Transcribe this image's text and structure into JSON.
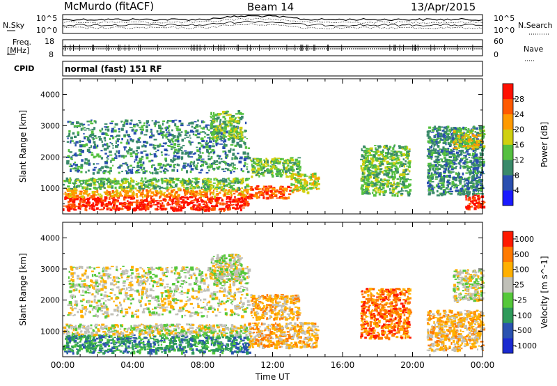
{
  "header": {
    "station": "McMurdo (fitACF)",
    "beam": "Beam 14",
    "date": "13/Apr/2015",
    "nsky_label": "N.Sky",
    "nsky_ticks": [
      "10^5",
      "10^0"
    ],
    "nsearch_label": "N.Search",
    "nsearch_ticks": [
      "10^5",
      "10^0"
    ],
    "freq_label": "Freq.",
    "freq_unit": "[MHz]",
    "freq_ticks": [
      "18",
      "8"
    ],
    "nave_label": "Nave",
    "nave_ticks": [
      "60",
      "0"
    ],
    "cpid_label": "CPID",
    "mode_text": "normal (fast) 151 RF"
  },
  "chart_data": [
    {
      "type": "heatmap",
      "name": "power-panel",
      "ylabel": "Slant Range [km]",
      "xlabel": "Time UT",
      "x_ticks": [
        "00:00",
        "04:00",
        "08:00",
        "12:00",
        "16:00",
        "20:00",
        "00:00"
      ],
      "x_range_hours": [
        0,
        24
      ],
      "ylim": [
        180,
        4500
      ],
      "y_ticks": [
        1000,
        2000,
        3000,
        4000
      ],
      "colorbar": {
        "label": "Power [dB]",
        "ticks": [
          "4",
          "8",
          "12",
          "16",
          "20",
          "24",
          "28"
        ],
        "colors": [
          "#1a1aff",
          "#2a4fb0",
          "#3a8a6a",
          "#55c040",
          "#d0d010",
          "#ff9a00",
          "#ff5a00",
          "#ff1000"
        ]
      },
      "regions": [
        {
          "t0": 0.0,
          "t1": 10.6,
          "r0": 330,
          "r1": 760,
          "level": 7
        },
        {
          "t0": 0.0,
          "t1": 10.6,
          "r0": 760,
          "r1": 1000,
          "level": 5
        },
        {
          "t0": 0.0,
          "t1": 10.6,
          "r0": 1000,
          "r1": 1350,
          "level": 3
        },
        {
          "t0": 10.6,
          "t1": 13.0,
          "r0": 700,
          "r1": 1100,
          "level": 6
        },
        {
          "t0": 13.0,
          "t1": 14.6,
          "r0": 900,
          "r1": 1500,
          "level": 4
        },
        {
          "t0": 0.2,
          "t1": 10.6,
          "r0": 1500,
          "r1": 3200,
          "level": 2
        },
        {
          "t0": 8.4,
          "t1": 10.2,
          "r0": 2600,
          "r1": 3500,
          "level": 3
        },
        {
          "t0": 10.7,
          "t1": 13.5,
          "r0": 1400,
          "r1": 2000,
          "level": 3
        },
        {
          "t0": 17.0,
          "t1": 19.8,
          "r0": 800,
          "r1": 2400,
          "level": 3
        },
        {
          "t0": 20.8,
          "t1": 24.0,
          "r0": 800,
          "r1": 3000,
          "level": 2
        },
        {
          "t0": 22.3,
          "t1": 24.0,
          "r0": 2300,
          "r1": 2900,
          "level": 4
        },
        {
          "t0": 23.0,
          "t1": 24.0,
          "r0": 350,
          "r1": 800,
          "level": 7
        }
      ]
    },
    {
      "type": "heatmap",
      "name": "velocity-panel",
      "ylabel": "Slant Range [km]",
      "xlabel": "Time UT",
      "x_ticks": [
        "00:00",
        "04:00",
        "08:00",
        "12:00",
        "16:00",
        "20:00",
        "00:00"
      ],
      "x_range_hours": [
        0,
        24
      ],
      "ylim": [
        180,
        4500
      ],
      "y_ticks": [
        1000,
        2000,
        3000,
        4000
      ],
      "colorbar": {
        "label": "Velocity [m s^-1]",
        "ticks": [
          "1000",
          "500",
          "100",
          "25",
          "-25",
          "-100",
          "-500",
          "-1000"
        ],
        "colors": [
          "#1a2ad0",
          "#2a52b0",
          "#2e9a5a",
          "#55c83a",
          "#c0c0b8",
          "#ffb000",
          "#ff7a00",
          "#ff1a00"
        ]
      },
      "regions": [
        {
          "t0": 0.0,
          "t1": 10.6,
          "r0": 330,
          "r1": 900,
          "level": 2
        },
        {
          "t0": 0.0,
          "t1": 10.6,
          "r0": 900,
          "r1": 1250,
          "level": 4
        },
        {
          "t0": 10.6,
          "t1": 14.5,
          "r0": 500,
          "r1": 1300,
          "level": 5
        },
        {
          "t0": 0.2,
          "t1": 10.6,
          "r0": 1500,
          "r1": 3100,
          "level": 4
        },
        {
          "t0": 8.4,
          "t1": 10.2,
          "r0": 2600,
          "r1": 3500,
          "level": 4
        },
        {
          "t0": 10.7,
          "t1": 13.5,
          "r0": 1400,
          "r1": 2200,
          "level": 5
        },
        {
          "t0": 17.0,
          "t1": 19.8,
          "r0": 800,
          "r1": 2400,
          "level": 6
        },
        {
          "t0": 20.8,
          "t1": 24.0,
          "r0": 400,
          "r1": 1700,
          "level": 5
        },
        {
          "t0": 22.3,
          "t1": 24.0,
          "r0": 2000,
          "r1": 3000,
          "level": 4
        }
      ]
    }
  ]
}
